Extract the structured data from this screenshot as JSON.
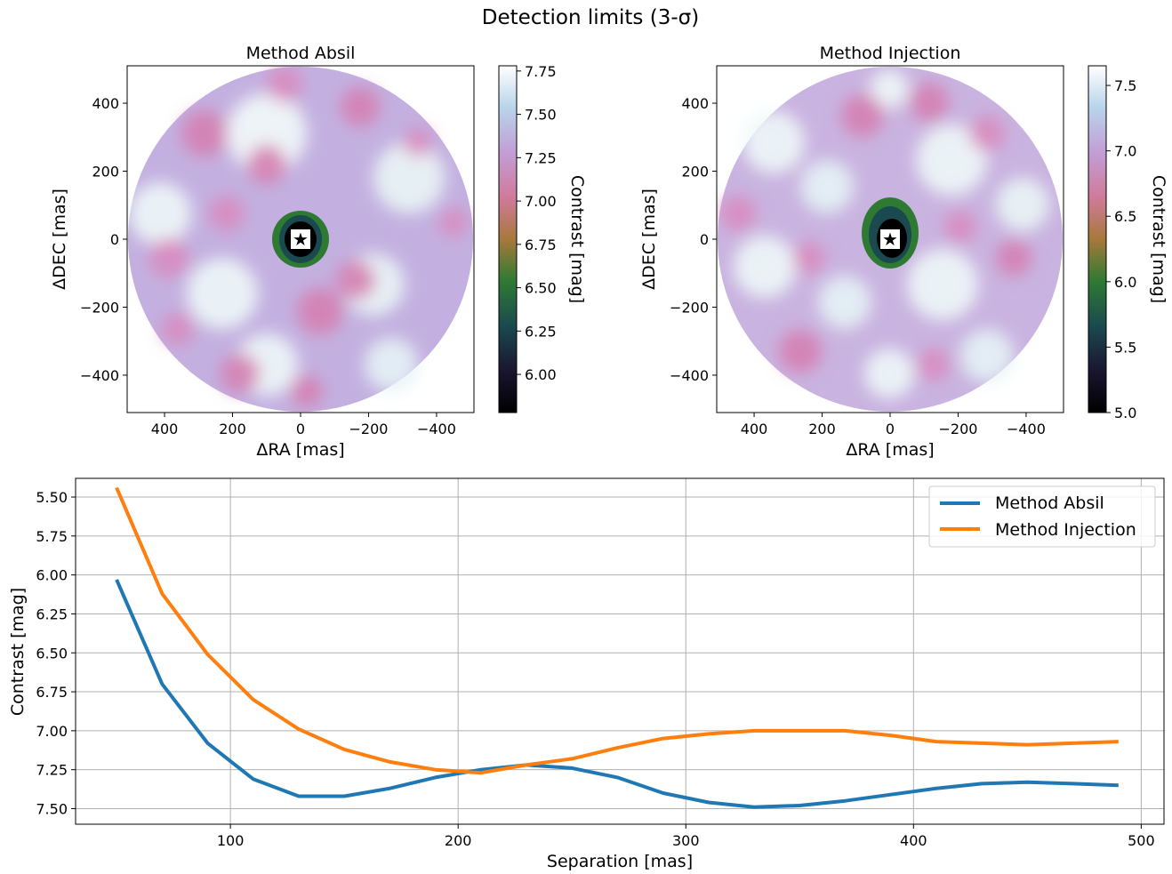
{
  "title": "Detection limits (3-σ)",
  "chart_data": [
    {
      "type": "heatmap",
      "title": "Method Absil",
      "xlabel": "ΔRA [mas]",
      "ylabel": "ΔDEC [mas]",
      "xlim": [
        510,
        -510
      ],
      "ylim": [
        -510,
        510
      ],
      "xticks": [
        400,
        200,
        0,
        -200,
        -400
      ],
      "yticks": [
        400,
        200,
        0,
        -200,
        -400
      ],
      "xtick_labels": [
        "400",
        "200",
        "0",
        "−200",
        "−400"
      ],
      "ytick_labels": [
        "400",
        "200",
        "0",
        "−200",
        "−400"
      ],
      "colorbar": {
        "label": "Contrast [mag]",
        "range": [
          5.78,
          7.78
        ],
        "ticks": [
          6.0,
          6.25,
          6.5,
          6.75,
          7.0,
          7.25,
          7.5,
          7.75
        ],
        "tick_labels": [
          "6.00",
          "6.25",
          "6.50",
          "6.75",
          "7.00",
          "7.25",
          "7.50",
          "7.75"
        ],
        "colormap": "cubehelix"
      },
      "field_radius_mas": 500,
      "marker": "star at (0, 0)"
    },
    {
      "type": "heatmap",
      "title": "Method Injection",
      "xlabel": "ΔRA [mas]",
      "ylabel": "ΔDEC [mas]",
      "xlim": [
        510,
        -510
      ],
      "ylim": [
        -510,
        510
      ],
      "xticks": [
        400,
        200,
        0,
        -200,
        -400
      ],
      "yticks": [
        400,
        200,
        0,
        -200,
        -400
      ],
      "xtick_labels": [
        "400",
        "200",
        "0",
        "−200",
        "−400"
      ],
      "ytick_labels": [
        "400",
        "200",
        "0",
        "−200",
        "−400"
      ],
      "colorbar": {
        "label": "Contrast [mag]",
        "range": [
          5.0,
          7.65
        ],
        "ticks": [
          5.0,
          5.5,
          6.0,
          6.5,
          7.0,
          7.5
        ],
        "tick_labels": [
          "5.0",
          "5.5",
          "6.0",
          "6.5",
          "7.0",
          "7.5"
        ],
        "colormap": "cubehelix"
      },
      "field_radius_mas": 500,
      "marker": "star at (0, 0)"
    },
    {
      "type": "line",
      "xlabel": "Separation [mas]",
      "ylabel": "Contrast [mag]",
      "xlim": [
        32,
        510
      ],
      "ylim": [
        7.6,
        5.38
      ],
      "y_inverted": true,
      "grid": true,
      "legend": "top-right",
      "xticks": [
        100,
        200,
        300,
        400,
        500
      ],
      "yticks": [
        5.5,
        5.75,
        6.0,
        6.25,
        6.5,
        6.75,
        7.0,
        7.25,
        7.5
      ],
      "ytick_labels": [
        "5.50",
        "5.75",
        "6.00",
        "6.25",
        "6.50",
        "6.75",
        "7.00",
        "7.25",
        "7.50"
      ],
      "x": [
        50,
        70,
        90,
        110,
        130,
        150,
        170,
        190,
        210,
        230,
        250,
        270,
        290,
        310,
        330,
        350,
        370,
        390,
        410,
        430,
        450,
        470,
        490
      ],
      "series": [
        {
          "name": "Method Absil",
          "color": "#1f77b4",
          "values": [
            6.03,
            6.7,
            7.08,
            7.31,
            7.42,
            7.42,
            7.37,
            7.3,
            7.25,
            7.22,
            7.24,
            7.3,
            7.4,
            7.46,
            7.49,
            7.48,
            7.45,
            7.41,
            7.37,
            7.34,
            7.33,
            7.34,
            7.35
          ]
        },
        {
          "name": "Method Injection",
          "color": "#ff7f0e",
          "values": [
            5.44,
            6.12,
            6.51,
            6.8,
            6.99,
            7.12,
            7.2,
            7.25,
            7.27,
            7.22,
            7.18,
            7.11,
            7.05,
            7.02,
            7.0,
            7.0,
            7.0,
            7.03,
            7.07,
            7.08,
            7.09,
            7.08,
            7.07
          ]
        }
      ]
    }
  ]
}
